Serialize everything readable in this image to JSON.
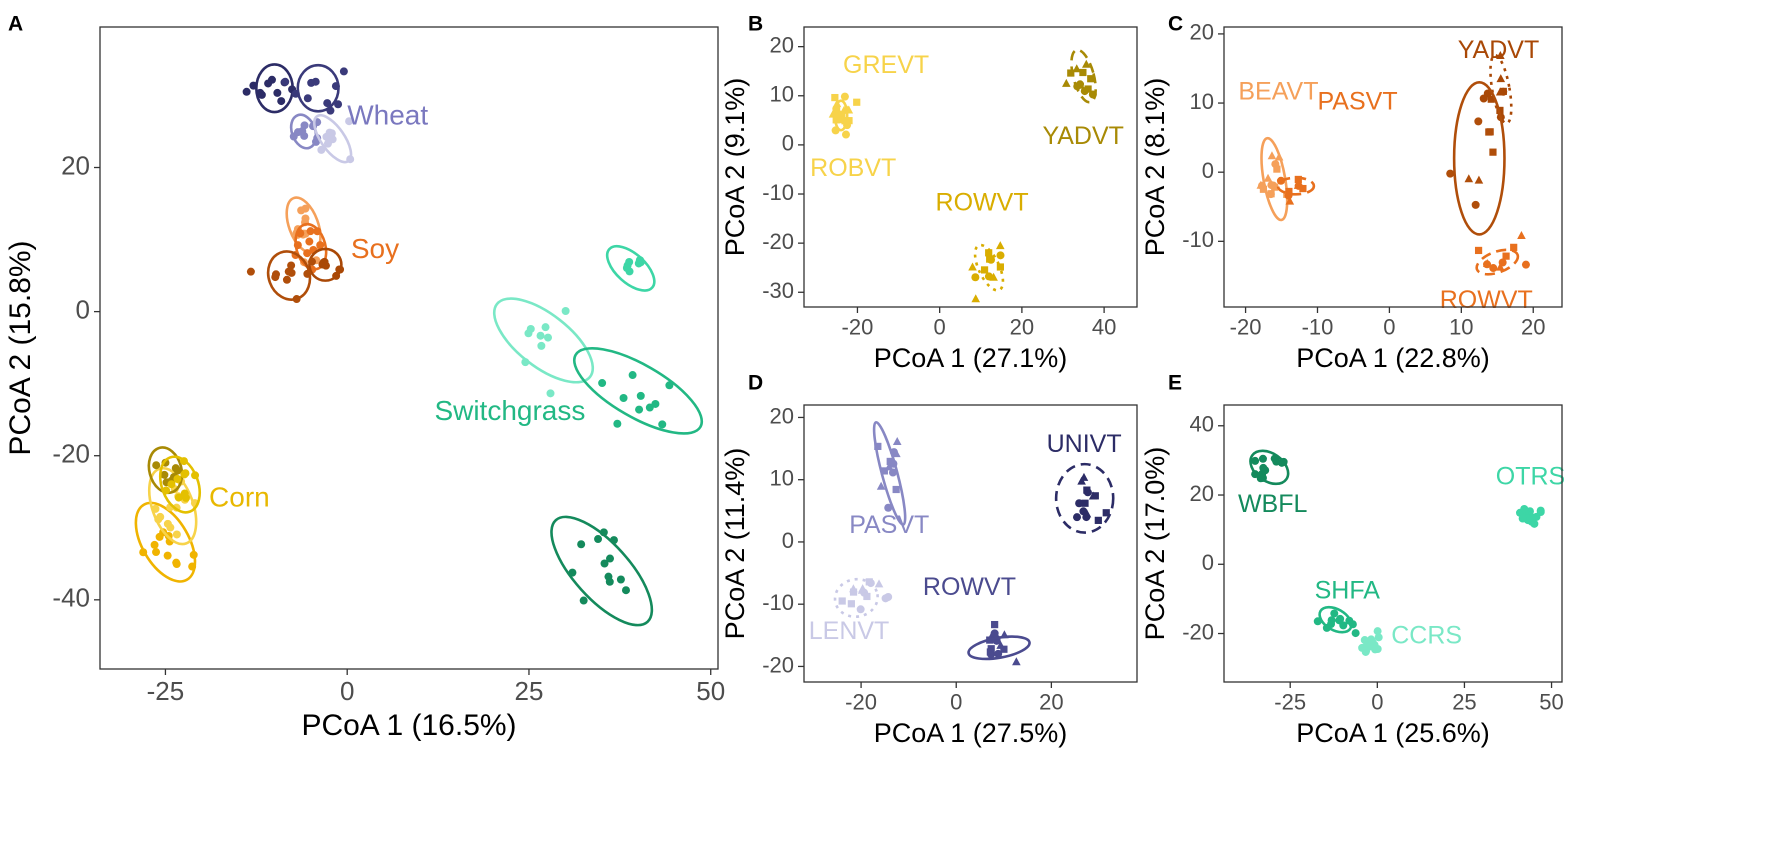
{
  "chart_data": [
    {
      "panel": "A",
      "type": "scatter",
      "xlabel": "PCoA 1 (16.5%)",
      "ylabel": "PCoA 2 (15.8%)",
      "xlim": [
        -34,
        51
      ],
      "ylim": [
        -49.6,
        39.5
      ],
      "xticks": [
        -25,
        0,
        25,
        50
      ],
      "xticklabels": [
        "-25",
        "0",
        "25",
        "50"
      ],
      "yticks": [
        -40,
        -20,
        0,
        20
      ],
      "yticklabels": [
        "-40",
        "-20",
        "0",
        "20"
      ],
      "clusters": [
        {
          "color": "#2c2c66",
          "center": [
            -10,
            31
          ],
          "axes": [
            2.5,
            3.3
          ],
          "angle": 0,
          "spread": [
            3,
            2.5
          ],
          "n": 10
        },
        {
          "color": "#3a3a7a",
          "center": [
            -4,
            31
          ],
          "axes": [
            2.8,
            3.2
          ],
          "angle": 0,
          "spread": [
            3,
            2.5
          ],
          "n": 10
        },
        {
          "color": "#8888c4",
          "center": [
            -6,
            25
          ],
          "axes": [
            1.6,
            2.4
          ],
          "angle": -20,
          "spread": [
            2,
            1.8
          ],
          "n": 9
        },
        {
          "color": "#c9c9e6",
          "center": [
            -2,
            24
          ],
          "axes": [
            1.6,
            3.8
          ],
          "angle": -35,
          "spread": [
            2.2,
            3
          ],
          "n": 8
        },
        {
          "color": "#f5a05a",
          "center": [
            -6,
            12
          ],
          "axes": [
            2,
            4
          ],
          "angle": -20,
          "spread": [
            2,
            3
          ],
          "n": 12
        },
        {
          "color": "#e8701e",
          "center": [
            -5,
            9
          ],
          "axes": [
            2,
            3.2
          ],
          "angle": -15,
          "spread": [
            2,
            2.5
          ],
          "n": 10
        },
        {
          "color": "#a94806",
          "center": [
            -3,
            6.5
          ],
          "axes": [
            2.2,
            2.2
          ],
          "angle": 0,
          "spread": [
            2,
            2
          ],
          "n": 8
        },
        {
          "color": "#b04e0a",
          "center": [
            -8,
            5
          ],
          "axes": [
            2.8,
            3.4
          ],
          "angle": -20,
          "spread": [
            2.5,
            2.5
          ],
          "n": 10
        },
        {
          "color": "#f0b400",
          "center": [
            -25,
            -32
          ],
          "axes": [
            3.2,
            6
          ],
          "angle": -30,
          "spread": [
            2.5,
            3.5
          ],
          "n": 12
        },
        {
          "color": "#f7d34a",
          "center": [
            -24,
            -27
          ],
          "axes": [
            2.8,
            5.5
          ],
          "angle": -20,
          "spread": [
            2.5,
            3.5
          ],
          "n": 14
        },
        {
          "color": "#a88a05",
          "center": [
            -25,
            -22
          ],
          "axes": [
            2.2,
            3.2
          ],
          "angle": -15,
          "spread": [
            2,
            2
          ],
          "n": 8
        },
        {
          "color": "#e4c000",
          "center": [
            -23,
            -24
          ],
          "axes": [
            2.5,
            4
          ],
          "angle": -20,
          "spread": [
            2,
            2.5
          ],
          "n": 10
        },
        {
          "color": "#7ae8c6",
          "center": [
            27,
            -4
          ],
          "axes": [
            3.6,
            8.2
          ],
          "angle": -52,
          "spread": [
            3.5,
            4
          ],
          "n": 9
        },
        {
          "color": "#3dd6a6",
          "center": [
            39,
            6
          ],
          "axes": [
            2,
            4
          ],
          "angle": -48,
          "spread": [
            2.2,
            2
          ],
          "n": 8
        },
        {
          "color": "#22b884",
          "center": [
            40,
            -11
          ],
          "axes": [
            3.6,
            10
          ],
          "angle": -60,
          "spread": [
            4,
            4
          ],
          "n": 10
        },
        {
          "color": "#148a5c",
          "center": [
            35,
            -36
          ],
          "axes": [
            3.8,
            9.5
          ],
          "angle": -42,
          "spread": [
            4,
            4
          ],
          "n": 12
        }
      ],
      "labels": [
        {
          "text": "Wheat",
          "x": 0,
          "y": 27,
          "color": "#7a78bf",
          "anchor": "start"
        },
        {
          "text": "Soy",
          "x": 0.5,
          "y": 8.5,
          "color": "#e8701e",
          "anchor": "start"
        },
        {
          "text": "Switchgrass",
          "x": 12,
          "y": -14,
          "color": "#22b884",
          "anchor": "start"
        },
        {
          "text": "Corn",
          "x": -19,
          "y": -26,
          "color": "#e8b800",
          "anchor": "start"
        }
      ]
    },
    {
      "panel": "B",
      "type": "scatter",
      "xlabel": "PCoA 1 (27.1%)",
      "ylabel": "PCoA 2 (9.1%)",
      "xlim": [
        -33,
        48
      ],
      "ylim": [
        -33,
        24
      ],
      "xticks": [
        -20,
        0,
        20,
        40
      ],
      "xticklabels": [
        "-20",
        "0",
        "20",
        "40"
      ],
      "yticks": [
        -30,
        -20,
        -10,
        0,
        10,
        20
      ],
      "yticklabels": [
        "-30",
        "-20",
        "-10",
        "0",
        "10",
        "20"
      ],
      "clusters": [
        {
          "color": "#f7d34a",
          "center": [
            -24,
            6
          ],
          "axes": [
            1.5,
            3
          ],
          "angle": 0,
          "spread": [
            2.5,
            4
          ],
          "n": 18
        },
        {
          "color": "#a88a05",
          "center": [
            35,
            14
          ],
          "axes": [
            2.5,
            5.5
          ],
          "angle": -15,
          "spread": [
            3.5,
            4
          ],
          "n": 12
        },
        {
          "color": "#d9ad00",
          "center": [
            12,
            -25
          ],
          "axes": [
            2.5,
            5
          ],
          "angle": -25,
          "spread": [
            3,
            3.5
          ],
          "n": 12
        }
      ],
      "labels": [
        {
          "text": "GREVT",
          "x": -23.5,
          "y": 16,
          "color": "#f7d34a",
          "anchor": "start"
        },
        {
          "text": "ROBVT",
          "x": -31.5,
          "y": -5,
          "color": "#f7d34a",
          "anchor": "start"
        },
        {
          "text": "YADVT",
          "x": 25,
          "y": 1.5,
          "color": "#a88a05",
          "anchor": "start"
        },
        {
          "text": "ROWVT",
          "x": -1,
          "y": -12,
          "color": "#d9ad00",
          "anchor": "start"
        }
      ]
    },
    {
      "panel": "C",
      "type": "scatter",
      "xlabel": "PCoA 1 (22.8%)",
      "ylabel": "PCoA 2 (8.1%)",
      "xlim": [
        -23,
        24
      ],
      "ylim": [
        -19.5,
        21
      ],
      "xticks": [
        -20,
        -10,
        0,
        10,
        20
      ],
      "xticklabels": [
        "-20",
        "-10",
        "0",
        "10",
        "20"
      ],
      "yticks": [
        -10,
        0,
        10,
        20
      ],
      "yticklabels": [
        "-10",
        "0",
        "10",
        "20"
      ],
      "clusters": [
        {
          "color": "#f5a05a",
          "center": [
            -16,
            -1
          ],
          "axes": [
            1.5,
            6
          ],
          "angle": -10,
          "spread": [
            2.5,
            4
          ],
          "n": 14
        },
        {
          "color": "#e8701e",
          "center": [
            -13,
            -2
          ],
          "axes": [
            2.5,
            1.2
          ],
          "angle": 0,
          "spread": [
            2.5,
            2
          ],
          "n": 8
        },
        {
          "color": "#a94806",
          "center": [
            15.5,
            12
          ],
          "axes": [
            1.2,
            5
          ],
          "angle": -10,
          "spread": [
            2,
            4
          ],
          "n": 10
        },
        {
          "color": "#b04e0a",
          "center": [
            12.5,
            2
          ],
          "axes": [
            3.5,
            11
          ],
          "angle": 0,
          "spread": [
            3.5,
            6
          ],
          "n": 8
        },
        {
          "color": "#e8701e",
          "center": [
            15,
            -13
          ],
          "axes": [
            3,
            1.5
          ],
          "angle": -20,
          "spread": [
            3,
            2.5
          ],
          "n": 10
        }
      ],
      "labels": [
        {
          "text": "BEAVT",
          "x": -21,
          "y": 11.5,
          "color": "#f5a05a",
          "anchor": "start"
        },
        {
          "text": "PASVT",
          "x": -10,
          "y": 10,
          "color": "#e8701e",
          "anchor": "start"
        },
        {
          "text": "YADVT",
          "x": 9.5,
          "y": 17.5,
          "color": "#a94806",
          "anchor": "start"
        },
        {
          "text": "ROWVT",
          "x": 7,
          "y": -18.7,
          "color": "#e8701e",
          "anchor": "start"
        }
      ]
    },
    {
      "panel": "D",
      "type": "scatter",
      "xlabel": "PCoA 1 (27.5%)",
      "ylabel": "PCoA 2 (11.4%)",
      "xlim": [
        -32,
        38
      ],
      "ylim": [
        -22.5,
        22
      ],
      "xticks": [
        -20,
        0,
        20
      ],
      "xticklabels": [
        "-20",
        "0",
        "20"
      ],
      "yticks": [
        -20,
        -10,
        0,
        10,
        20
      ],
      "yticklabels": [
        "-20",
        "-10",
        "0",
        "10",
        "20"
      ],
      "clusters": [
        {
          "color": "#8888c4",
          "center": [
            -14,
            11
          ],
          "axes": [
            1.6,
            8.5
          ],
          "angle": -15,
          "spread": [
            2.5,
            5
          ],
          "n": 12
        },
        {
          "color": "#2c2c66",
          "center": [
            27,
            7
          ],
          "axes": [
            6,
            5.5
          ],
          "angle": 0,
          "spread": [
            4,
            3.5
          ],
          "n": 14
        },
        {
          "color": "#c9c9e6",
          "center": [
            -21,
            -9
          ],
          "axes": [
            4.5,
            3
          ],
          "angle": -10,
          "spread": [
            4,
            3
          ],
          "n": 14
        },
        {
          "color": "#4b4b8f",
          "center": [
            9,
            -17
          ],
          "axes": [
            6.5,
            1.6
          ],
          "angle": -10,
          "spread": [
            5,
            3
          ],
          "n": 14
        }
      ],
      "labels": [
        {
          "text": "UNIVT",
          "x": 19,
          "y": 15.5,
          "color": "#2c2c66",
          "anchor": "start"
        },
        {
          "text": "PASVT",
          "x": -22.5,
          "y": 2.5,
          "color": "#8888c4",
          "anchor": "start"
        },
        {
          "text": "ROWVT",
          "x": -7,
          "y": -7.5,
          "color": "#4b4b8f",
          "anchor": "start"
        },
        {
          "text": "LENVT",
          "x": -31,
          "y": -14.5,
          "color": "#c9c9e6",
          "anchor": "start"
        }
      ]
    },
    {
      "panel": "E",
      "type": "scatter",
      "xlabel": "PCoA 1 (25.6%)",
      "ylabel": "PCoA 2 (17.0%)",
      "xlim": [
        -44,
        53
      ],
      "ylim": [
        -34,
        46
      ],
      "xticks": [
        -25,
        0,
        25,
        50
      ],
      "xticklabels": [
        "-25",
        "0",
        "25",
        "50"
      ],
      "yticks": [
        -20,
        0,
        20,
        40
      ],
      "yticklabels": [
        "-20",
        "0",
        "20",
        "40"
      ],
      "clusters": [
        {
          "color": "#148a5c",
          "center": [
            -31,
            28
          ],
          "axes": [
            4,
            6
          ],
          "angle": -55,
          "spread": [
            4,
            4
          ],
          "n": 12
        },
        {
          "color": "#3dd6a6",
          "center": [
            45,
            15
          ],
          "axes": [
            0,
            0
          ],
          "angle": 0,
          "spread": [
            3,
            3
          ],
          "n": 14
        },
        {
          "color": "#22b884",
          "center": [
            -12,
            -16
          ],
          "axes": [
            3,
            5
          ],
          "angle": -60,
          "spread": [
            4,
            3
          ],
          "n": 12
        },
        {
          "color": "#7ae8c6",
          "center": [
            -2,
            -24
          ],
          "axes": [
            0,
            0
          ],
          "angle": 0,
          "spread": [
            3.5,
            3
          ],
          "n": 14
        }
      ],
      "labels": [
        {
          "text": "WBFL",
          "x": -40,
          "y": 17,
          "color": "#148a5c",
          "anchor": "start"
        },
        {
          "text": "OTRS",
          "x": 34,
          "y": 25,
          "color": "#3dd6a6",
          "anchor": "start"
        },
        {
          "text": "SHFA",
          "x": -18,
          "y": -8,
          "color": "#22b884",
          "anchor": "start"
        },
        {
          "text": "CCRS",
          "x": 4,
          "y": -21,
          "color": "#7ae8c6",
          "anchor": "start"
        }
      ]
    }
  ]
}
